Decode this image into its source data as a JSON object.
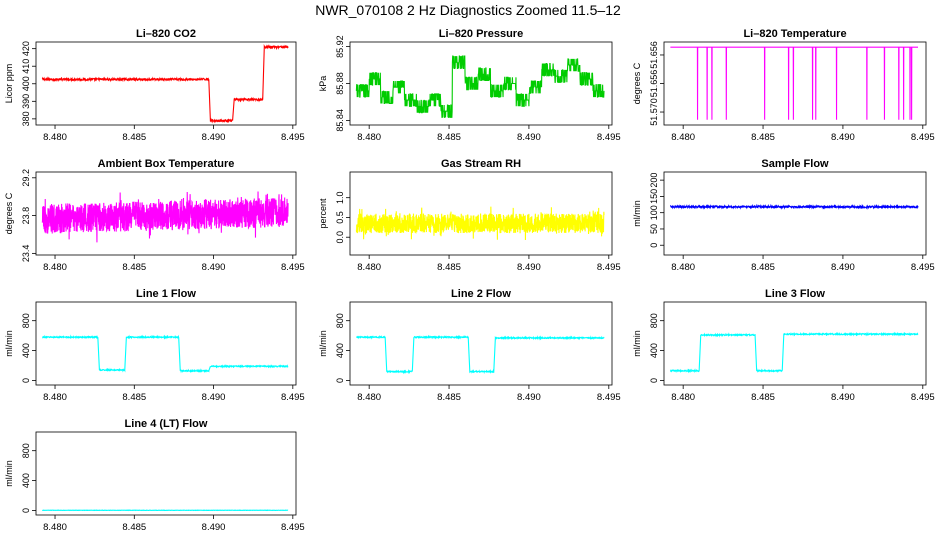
{
  "title": "NWR_070108  2 Hz Diagnostics Zoomed 11.5–12",
  "chart_data": [
    {
      "id": "co2",
      "type": "line",
      "title": "Li–820 CO2",
      "ylabel": "Licor ppm",
      "color": "#ff0000",
      "xlim": [
        8.4788,
        8.4952
      ],
      "ylim": [
        376.5,
        423.8
      ],
      "x_ticks": [
        "8.480",
        "8.485",
        "8.490",
        "8.495"
      ],
      "y_ticks": [
        "380",
        "390",
        "400",
        "410",
        "420"
      ],
      "segments": [
        {
          "x": [
            8.4792,
            8.4897
          ],
          "y": [
            402.5,
            402.5
          ]
        },
        {
          "x": [
            8.4897,
            8.4898
          ],
          "y": [
            402.5,
            379
          ]
        },
        {
          "x": [
            8.4898,
            8.4912
          ],
          "y": [
            379,
            379
          ]
        },
        {
          "x": [
            8.4912,
            8.4913
          ],
          "y": [
            379,
            391
          ]
        },
        {
          "x": [
            8.4913,
            8.4931
          ],
          "y": [
            391,
            391
          ]
        },
        {
          "x": [
            8.4931,
            8.4932
          ],
          "y": [
            391,
            421
          ]
        },
        {
          "x": [
            8.4932,
            8.4947
          ],
          "y": [
            421,
            421
          ]
        }
      ],
      "noise": 0.6
    },
    {
      "id": "pressure",
      "type": "line",
      "title": "Li–820 Pressure",
      "ylabel": "kPa",
      "color": "#00cc00",
      "xlim": [
        8.4788,
        8.4952
      ],
      "ylim": [
        85.835,
        85.925
      ],
      "x_ticks": [
        "8.480",
        "8.485",
        "8.490",
        "8.495"
      ],
      "y_ticks": [
        "85.84",
        "85.88",
        "85.92"
      ],
      "levels": [
        {
          "x": 8.4792,
          "y": 85.872
        },
        {
          "x": 8.48,
          "y": 85.885
        },
        {
          "x": 8.4807,
          "y": 85.865
        },
        {
          "x": 8.4815,
          "y": 85.876
        },
        {
          "x": 8.4822,
          "y": 85.862
        },
        {
          "x": 8.483,
          "y": 85.855
        },
        {
          "x": 8.4837,
          "y": 85.862
        },
        {
          "x": 8.4845,
          "y": 85.85
        },
        {
          "x": 8.4852,
          "y": 85.903
        },
        {
          "x": 8.486,
          "y": 85.88
        },
        {
          "x": 8.4868,
          "y": 85.89
        },
        {
          "x": 8.4876,
          "y": 85.872
        },
        {
          "x": 8.4884,
          "y": 85.88
        },
        {
          "x": 8.4892,
          "y": 85.862
        },
        {
          "x": 8.49,
          "y": 85.876
        },
        {
          "x": 8.4908,
          "y": 85.895
        },
        {
          "x": 8.4916,
          "y": 85.888
        },
        {
          "x": 8.4924,
          "y": 85.9
        },
        {
          "x": 8.4932,
          "y": 85.885
        },
        {
          "x": 8.494,
          "y": 85.872
        },
        {
          "x": 8.4947,
          "y": 85.872
        }
      ],
      "quantum": 0.0067
    },
    {
      "id": "temperature",
      "type": "line",
      "title": "Li–820 Temperature",
      "ylabel": "degrees C",
      "color": "#ff00ff",
      "xlim": [
        8.4788,
        8.4952
      ],
      "ylim": [
        51.5695,
        51.5727
      ],
      "x_ticks": [
        "8.480",
        "8.485",
        "8.490",
        "8.495"
      ],
      "y_ticks": [
        "51.570",
        "51.656",
        "51.656"
      ],
      "baseline": 51.5725,
      "dips": [
        8.4809,
        8.4815,
        8.4818,
        8.4827,
        8.4851,
        8.4866,
        8.4869,
        8.4881,
        8.4883,
        8.4896,
        8.4915,
        8.4926,
        8.4935,
        8.4938,
        8.4942,
        8.4943
      ],
      "dip_to": 51.5697
    },
    {
      "id": "boxtemp",
      "type": "line",
      "title": "Ambient Box Temperature",
      "ylabel": "degrees C",
      "color": "#ff00ff",
      "xlim": [
        8.4788,
        8.4952
      ],
      "ylim": [
        23.28,
        29.43
      ],
      "x_ticks": [
        "8.480",
        "8.485",
        "8.490",
        "8.495"
      ],
      "y_ticks": [
        "23.4",
        "23.8",
        "29.2"
      ],
      "center": 26.2,
      "amplitude": 1.1,
      "trend": 0.5
    },
    {
      "id": "rh",
      "type": "line",
      "title": "Gas Stream RH",
      "ylabel": "percent",
      "color": "#ffff00",
      "xlim": [
        8.4788,
        8.4952
      ],
      "ylim": [
        -0.45,
        1.65
      ],
      "x_ticks": [
        "8.480",
        "8.485",
        "8.490",
        "8.495"
      ],
      "y_ticks": [
        "0.0",
        "0.5",
        "1.0"
      ],
      "center": 0.35,
      "amplitude": 0.25
    },
    {
      "id": "sampleflow",
      "type": "line",
      "title": "Sample Flow",
      "ylabel": "ml/min",
      "color": "#0000ff",
      "xlim": [
        8.4788,
        8.4952
      ],
      "ylim": [
        -30,
        225
      ],
      "x_ticks": [
        "8.480",
        "8.485",
        "8.490",
        "8.495"
      ],
      "y_ticks": [
        "0",
        "50",
        "100",
        "150",
        "200"
      ],
      "segments": [
        {
          "x": [
            8.4792,
            8.4947
          ],
          "y": [
            118,
            118
          ]
        }
      ],
      "noise": 3
    },
    {
      "id": "line1",
      "type": "line",
      "title": "Line 1 Flow",
      "ylabel": "ml/min",
      "color": "#00ffff",
      "xlim": [
        8.4788,
        8.4952
      ],
      "ylim": [
        -60,
        1050
      ],
      "x_ticks": [
        "8.480",
        "8.485",
        "8.490",
        "8.495"
      ],
      "y_ticks": [
        "0",
        "400",
        "800"
      ],
      "segments": [
        {
          "x": [
            8.4792,
            8.4827
          ],
          "y": [
            580,
            580
          ]
        },
        {
          "x": [
            8.4827,
            8.4828
          ],
          "y": [
            580,
            140
          ]
        },
        {
          "x": [
            8.4828,
            8.4844
          ],
          "y": [
            140,
            140
          ]
        },
        {
          "x": [
            8.4844,
            8.4845
          ],
          "y": [
            140,
            580
          ]
        },
        {
          "x": [
            8.4845,
            8.4878
          ],
          "y": [
            580,
            580
          ]
        },
        {
          "x": [
            8.4878,
            8.4879
          ],
          "y": [
            580,
            130
          ]
        },
        {
          "x": [
            8.4879,
            8.4897
          ],
          "y": [
            130,
            130
          ]
        },
        {
          "x": [
            8.4897,
            8.4898
          ],
          "y": [
            130,
            190
          ]
        },
        {
          "x": [
            8.4898,
            8.4947
          ],
          "y": [
            190,
            190
          ]
        }
      ],
      "noise": 8
    },
    {
      "id": "line2",
      "type": "line",
      "title": "Line 2 Flow",
      "ylabel": "ml/min",
      "color": "#00ffff",
      "xlim": [
        8.4788,
        8.4952
      ],
      "ylim": [
        -60,
        1050
      ],
      "x_ticks": [
        "8.480",
        "8.485",
        "8.490",
        "8.495"
      ],
      "y_ticks": [
        "0",
        "400",
        "800"
      ],
      "segments": [
        {
          "x": [
            8.4792,
            8.481
          ],
          "y": [
            580,
            580
          ]
        },
        {
          "x": [
            8.481,
            8.4811
          ],
          "y": [
            580,
            120
          ]
        },
        {
          "x": [
            8.4811,
            8.4827
          ],
          "y": [
            120,
            120
          ]
        },
        {
          "x": [
            8.4827,
            8.4828
          ],
          "y": [
            120,
            580
          ]
        },
        {
          "x": [
            8.4828,
            8.4862
          ],
          "y": [
            580,
            580
          ]
        },
        {
          "x": [
            8.4862,
            8.4863
          ],
          "y": [
            580,
            120
          ]
        },
        {
          "x": [
            8.4863,
            8.4878
          ],
          "y": [
            120,
            120
          ]
        },
        {
          "x": [
            8.4878,
            8.4879
          ],
          "y": [
            120,
            570
          ]
        },
        {
          "x": [
            8.4879,
            8.4947
          ],
          "y": [
            570,
            570
          ]
        }
      ],
      "noise": 8
    },
    {
      "id": "line3",
      "type": "line",
      "title": "Line 3 Flow",
      "ylabel": "ml/min",
      "color": "#00ffff",
      "xlim": [
        8.4788,
        8.4952
      ],
      "ylim": [
        -60,
        1050
      ],
      "x_ticks": [
        "8.480",
        "8.485",
        "8.490",
        "8.495"
      ],
      "y_ticks": [
        "0",
        "400",
        "800"
      ],
      "segments": [
        {
          "x": [
            8.4792,
            8.481
          ],
          "y": [
            130,
            130
          ]
        },
        {
          "x": [
            8.481,
            8.4811
          ],
          "y": [
            130,
            610
          ]
        },
        {
          "x": [
            8.4811,
            8.4845
          ],
          "y": [
            610,
            610
          ]
        },
        {
          "x": [
            8.4845,
            8.4846
          ],
          "y": [
            610,
            130
          ]
        },
        {
          "x": [
            8.4846,
            8.4862
          ],
          "y": [
            130,
            130
          ]
        },
        {
          "x": [
            8.4862,
            8.4863
          ],
          "y": [
            130,
            620
          ]
        },
        {
          "x": [
            8.4863,
            8.4947
          ],
          "y": [
            620,
            620
          ]
        }
      ],
      "noise": 8
    },
    {
      "id": "line4",
      "type": "line",
      "title": "Line 4 (LT) Flow",
      "ylabel": "ml/min",
      "color": "#00ffff",
      "xlim": [
        8.4788,
        8.4952
      ],
      "ylim": [
        -60,
        1050
      ],
      "x_ticks": [
        "8.480",
        "8.485",
        "8.490",
        "8.495"
      ],
      "y_ticks": [
        "0",
        "400",
        "800"
      ],
      "segments": [
        {
          "x": [
            8.4792,
            8.4947
          ],
          "y": [
            3,
            3
          ]
        }
      ],
      "noise": 2
    }
  ]
}
